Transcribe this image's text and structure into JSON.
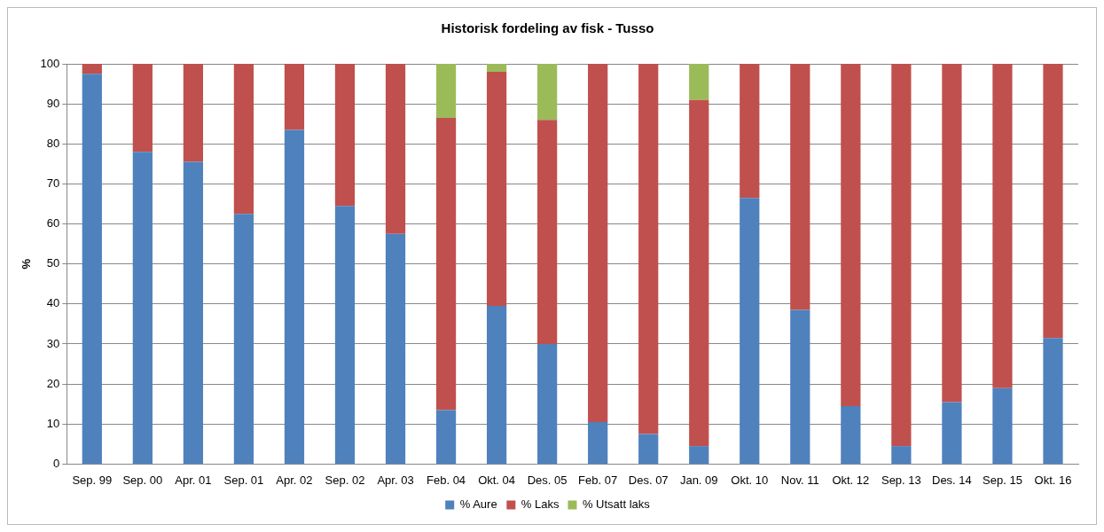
{
  "chart_data": {
    "type": "bar",
    "title": "Historisk fordeling av fisk - Tusso",
    "ylabel": "%",
    "categories": [
      "Sep. 99",
      "Sep. 00",
      "Apr. 01",
      "Sep. 01",
      "Apr. 02",
      "Sep. 02",
      "Apr. 03",
      "Feb. 04",
      "Okt. 04",
      "Des. 05",
      "Feb. 07",
      "Des. 07",
      "Jan. 09",
      "Okt. 10",
      "Nov. 11",
      "Okt. 12",
      "Sep. 13",
      "Des. 14",
      "Sep. 15",
      "Okt. 16"
    ],
    "stacked": true,
    "ylim": [
      0,
      100
    ],
    "yticks": [
      0,
      10,
      20,
      30,
      40,
      50,
      60,
      70,
      80,
      90,
      100
    ],
    "grid": "y",
    "legend": "bottom",
    "series": [
      {
        "name": "% Aure",
        "color": "#4f81bd",
        "values": [
          97.5,
          78,
          75.5,
          62.5,
          83.5,
          64.5,
          57.5,
          13.5,
          39.5,
          30,
          10.5,
          7.5,
          4.5,
          66.5,
          38.5,
          14.5,
          4.5,
          15.5,
          19,
          31.5
        ]
      },
      {
        "name": "% Laks",
        "color": "#c0504d",
        "values": [
          2.5,
          22,
          24.5,
          37.5,
          16.5,
          35.5,
          42.5,
          73,
          58.5,
          56,
          89.5,
          92.5,
          86.5,
          33.5,
          61.5,
          85.5,
          95.5,
          84.5,
          81,
          68.5
        ]
      },
      {
        "name": "% Utsatt laks",
        "color": "#9bbb59",
        "values": [
          null,
          null,
          null,
          null,
          null,
          null,
          null,
          13.5,
          2,
          14,
          null,
          null,
          9,
          null,
          null,
          null,
          null,
          null,
          null,
          null
        ]
      }
    ]
  }
}
